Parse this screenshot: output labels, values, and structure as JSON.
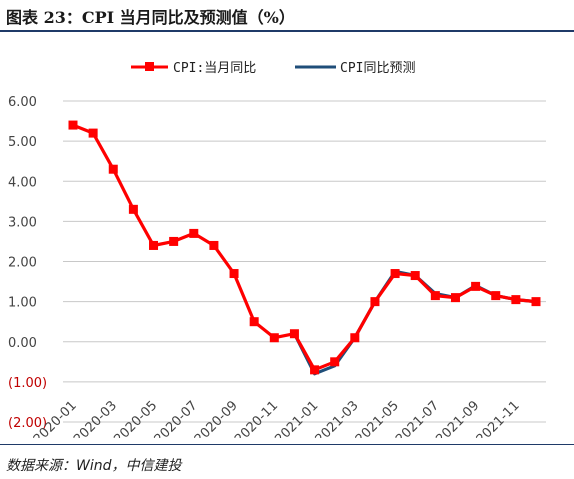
{
  "header": {
    "title": "图表 23：CPI 当月同比及预测值（%）"
  },
  "footer": {
    "source": "数据来源：Wind，中信建投"
  },
  "chart_data": {
    "type": "line",
    "ylim": [
      -2,
      6
    ],
    "y_ticks": [
      "6.00",
      "5.00",
      "4.00",
      "3.00",
      "2.00",
      "1.00",
      "0.00",
      "(1.00)",
      "(2.00)"
    ],
    "y_tick_values": [
      6,
      5,
      4,
      3,
      2,
      1,
      0,
      -1,
      -2
    ],
    "grid": true,
    "legend_position": "top",
    "categories": [
      "2020-01",
      "2020-02",
      "2020-03",
      "2020-04",
      "2020-05",
      "2020-06",
      "2020-07",
      "2020-08",
      "2020-09",
      "2020-10",
      "2020-11",
      "2020-12",
      "2021-01",
      "2021-02",
      "2021-03",
      "2021-04",
      "2021-05",
      "2021-06",
      "2021-07",
      "2021-08",
      "2021-09",
      "2021-10",
      "2021-11",
      "2021-12"
    ],
    "x_tick_labels": [
      "2020-01",
      "2020-03",
      "2020-05",
      "2020-07",
      "2020-09",
      "2020-11",
      "2021-01",
      "2021-03",
      "2021-05",
      "2021-07",
      "2021-09",
      "2021-11"
    ],
    "series": [
      {
        "name": "CPI:当月同比",
        "color": "#ff0000",
        "marker": "square",
        "values": [
          5.4,
          5.2,
          4.3,
          3.3,
          2.4,
          2.5,
          2.7,
          2.4,
          1.7,
          0.5,
          0.1,
          0.2,
          -0.7,
          -0.5,
          0.1,
          1.0,
          1.7,
          1.65,
          1.15,
          1.1,
          1.38,
          1.15,
          1.05,
          1.0
        ]
      },
      {
        "name": "CPI同比预测",
        "color": "#1f4e79",
        "marker": "none",
        "values": [
          null,
          null,
          null,
          null,
          null,
          null,
          null,
          null,
          null,
          null,
          null,
          0.2,
          -0.8,
          -0.6,
          0.1,
          1.0,
          1.75,
          1.65,
          1.2,
          1.1,
          1.4,
          1.15,
          1.05,
          1.0
        ]
      }
    ]
  }
}
